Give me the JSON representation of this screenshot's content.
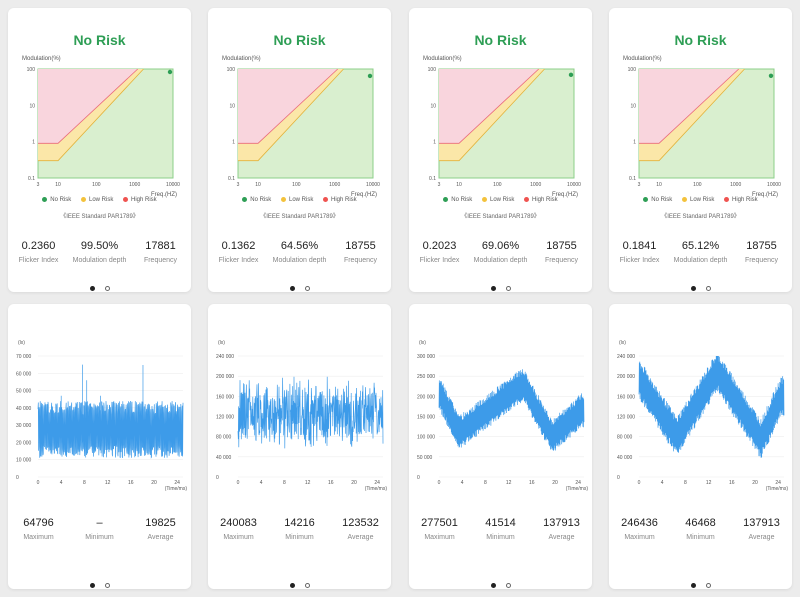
{
  "risk_cards": [
    {
      "title": "No Risk",
      "y_label": "Modulation(%)",
      "x_label": "Freq.(HZ)",
      "y_ticks": [
        "100",
        "10",
        "1",
        "0.1"
      ],
      "x_ticks": [
        "3",
        "10",
        "100",
        "1000",
        "10000"
      ],
      "legend": {
        "no": "No Risk",
        "low": "Low Risk",
        "high": "High Risk"
      },
      "standard": "《IEEE Standard PAR1789》",
      "stats": [
        {
          "value": "0.2360",
          "label": "Flicker Index"
        },
        {
          "value": "99.50%",
          "label": "Modulation depth"
        },
        {
          "value": "17881",
          "label": "Frequency"
        }
      ],
      "point": {
        "freq": 17881,
        "mod": 99.5
      }
    },
    {
      "title": "No Risk",
      "y_label": "Modulation(%)",
      "x_label": "Freq.(HZ)",
      "y_ticks": [
        "100",
        "10",
        "1",
        "0.1"
      ],
      "x_ticks": [
        "3",
        "10",
        "100",
        "1000",
        "10000"
      ],
      "legend": {
        "no": "No Risk",
        "low": "Low Risk",
        "high": "High Risk"
      },
      "standard": "《IEEE Standard PAR1789》",
      "stats": [
        {
          "value": "0.1362",
          "label": "Flicker Index"
        },
        {
          "value": "64.56%",
          "label": "Modulation depth"
        },
        {
          "value": "18755",
          "label": "Frequency"
        }
      ],
      "point": {
        "freq": 18755,
        "mod": 64.56
      }
    },
    {
      "title": "No Risk",
      "y_label": "Modulation(%)",
      "x_label": "Freq.(HZ)",
      "y_ticks": [
        "100",
        "10",
        "1",
        "0.1"
      ],
      "x_ticks": [
        "3",
        "10",
        "100",
        "1000",
        "10000"
      ],
      "legend": {
        "no": "No Risk",
        "low": "Low Risk",
        "high": "High Risk"
      },
      "standard": "《IEEE Standard PAR1789》",
      "stats": [
        {
          "value": "0.2023",
          "label": "Flicker Index"
        },
        {
          "value": "69.06%",
          "label": "Modulation depth"
        },
        {
          "value": "18755",
          "label": "Frequency"
        }
      ],
      "point": {
        "freq": 18755,
        "mod": 69.06
      }
    },
    {
      "title": "No Risk",
      "y_label": "Modulation(%)",
      "x_label": "Freq.(HZ)",
      "y_ticks": [
        "100",
        "10",
        "1",
        "0.1"
      ],
      "x_ticks": [
        "3",
        "10",
        "100",
        "1000",
        "10000"
      ],
      "legend": {
        "no": "No Risk",
        "low": "Low Risk",
        "high": "High Risk"
      },
      "standard": "《IEEE Standard PAR1789》",
      "stats": [
        {
          "value": "0.1841",
          "label": "Flicker Index"
        },
        {
          "value": "65.12%",
          "label": "Modulation depth"
        },
        {
          "value": "18755",
          "label": "Frequency"
        }
      ],
      "point": {
        "freq": 18755,
        "mod": 65.12
      }
    }
  ],
  "lux_cards": [
    {
      "y_label": "(lx)",
      "x_label": "(Time/ms)",
      "stats": [
        {
          "value": "64796",
          "label": "Maximum"
        },
        {
          "value": "–",
          "label": "Minimum"
        },
        {
          "value": "19825",
          "label": "Average"
        }
      ]
    },
    {
      "y_label": "(lx)",
      "x_label": "(Time/ms)",
      "stats": [
        {
          "value": "240083",
          "label": "Maximum"
        },
        {
          "value": "14216",
          "label": "Minimum"
        },
        {
          "value": "123532",
          "label": "Average"
        }
      ]
    },
    {
      "y_label": "(lx)",
      "x_label": "(Time/ms)",
      "stats": [
        {
          "value": "277501",
          "label": "Maximum"
        },
        {
          "value": "41514",
          "label": "Minimum"
        },
        {
          "value": "137913",
          "label": "Average"
        }
      ]
    },
    {
      "y_label": "(lx)",
      "x_label": "(Time/ms)",
      "stats": [
        {
          "value": "246436",
          "label": "Maximum"
        },
        {
          "value": "46468",
          "label": "Minimum"
        },
        {
          "value": "137913",
          "label": "Average"
        }
      ]
    }
  ],
  "colors": {
    "no_risk": "#2e9e55",
    "low_risk": "#f3c23c",
    "high_risk": "#ef5350",
    "line": "#3d9be9",
    "zone_green": "#d9efcf",
    "zone_yellow": "#fbe7a8",
    "zone_pink": "#f9d5dd"
  },
  "chart_data": [
    {
      "type": "line",
      "title": "",
      "xlabel": "(Time/ms)",
      "ylabel": "(lx)",
      "ylim": [
        0,
        70000
      ],
      "xlim": [
        0,
        25
      ],
      "y_ticks": [
        "0",
        "10 000",
        "20 000",
        "30 000",
        "40 000",
        "50 000",
        "60 000",
        "70 000"
      ],
      "x_ticks": [
        "0",
        "4",
        "8",
        "12",
        "16",
        "20",
        "24"
      ],
      "series": [
        {
          "pattern": "square",
          "low": 15000,
          "high": 40000,
          "noise": 8000,
          "spikes": [
            {
              "x": 7.7,
              "y": 65000
            },
            {
              "x": 18.1,
              "y": 64800
            },
            {
              "x": 8.4,
              "y": 56000
            },
            {
              "x": 10.8,
              "y": 47000
            },
            {
              "x": 4.0,
              "y": 47000
            }
          ]
        }
      ]
    },
    {
      "type": "line",
      "title": "",
      "xlabel": "(Time/ms)",
      "ylabel": "(lx)",
      "ylim": [
        0,
        240000
      ],
      "xlim": [
        0,
        25
      ],
      "y_ticks": [
        "0",
        "40 000",
        "80 000",
        "120 000",
        "160 000",
        "200 000",
        "240 000"
      ],
      "x_ticks": [
        "0",
        "4",
        "8",
        "12",
        "16",
        "20",
        "24"
      ],
      "series": [
        {
          "pattern": "noise",
          "center": 125000,
          "spread": 75000,
          "max": 240083,
          "min": 14216
        }
      ]
    },
    {
      "type": "line",
      "title": "",
      "xlabel": "(Time/ms)",
      "ylabel": "(lx)",
      "ylim": [
        0,
        300000
      ],
      "xlim": [
        0,
        25
      ],
      "y_ticks": [
        "0",
        "50 000",
        "100 000",
        "150 000",
        "200 000",
        "250 000",
        "300 000"
      ],
      "x_ticks": [
        "0",
        "4",
        "8",
        "12",
        "16",
        "20",
        "24"
      ],
      "series": [
        {
          "pattern": "sawtooth",
          "points": [
            [
              0,
              210000
            ],
            [
              3.5,
              110000
            ],
            [
              14.5,
              230000
            ],
            [
              19.5,
              100000
            ],
            [
              24.5,
              165000
            ]
          ],
          "band": 85000
        }
      ]
    },
    {
      "type": "line",
      "title": "",
      "xlabel": "(Time/ms)",
      "ylabel": "(lx)",
      "ylim": [
        0,
        240000
      ],
      "xlim": [
        0,
        25
      ],
      "y_ticks": [
        "0",
        "40 000",
        "80 000",
        "120 000",
        "160 000",
        "200 000",
        "240 000"
      ],
      "x_ticks": [
        "0",
        "4",
        "8",
        "12",
        "16",
        "20",
        "24"
      ],
      "series": [
        {
          "pattern": "sawtooth",
          "points": [
            [
              0,
              195000
            ],
            [
              6.5,
              80000
            ],
            [
              13.5,
              210000
            ],
            [
              21,
              75000
            ],
            [
              24.5,
              160000
            ]
          ],
          "band": 80000
        }
      ]
    }
  ]
}
